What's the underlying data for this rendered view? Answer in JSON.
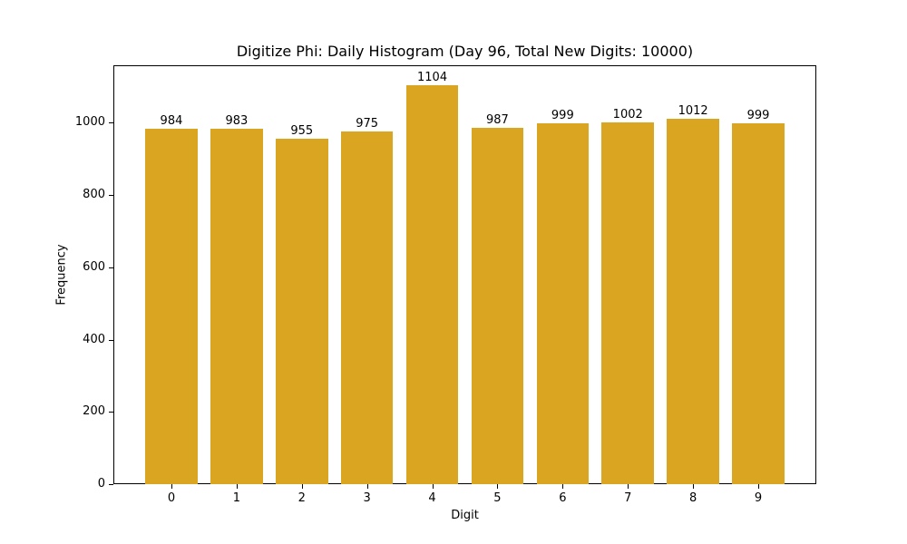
{
  "chart_data": {
    "type": "bar",
    "title": "Digitize Phi: Daily Histogram (Day 96, Total New Digits: 10000)",
    "xlabel": "Digit",
    "ylabel": "Frequency",
    "categories": [
      "0",
      "1",
      "2",
      "3",
      "4",
      "5",
      "6",
      "7",
      "8",
      "9"
    ],
    "values": [
      984,
      983,
      955,
      975,
      1104,
      987,
      999,
      1002,
      1012,
      999
    ],
    "yticks": [
      0,
      200,
      400,
      600,
      800,
      1000
    ],
    "ylim": [
      0,
      1159
    ],
    "bar_color": "#DAA520",
    "grid": false,
    "legend": null,
    "data_labels": true
  }
}
